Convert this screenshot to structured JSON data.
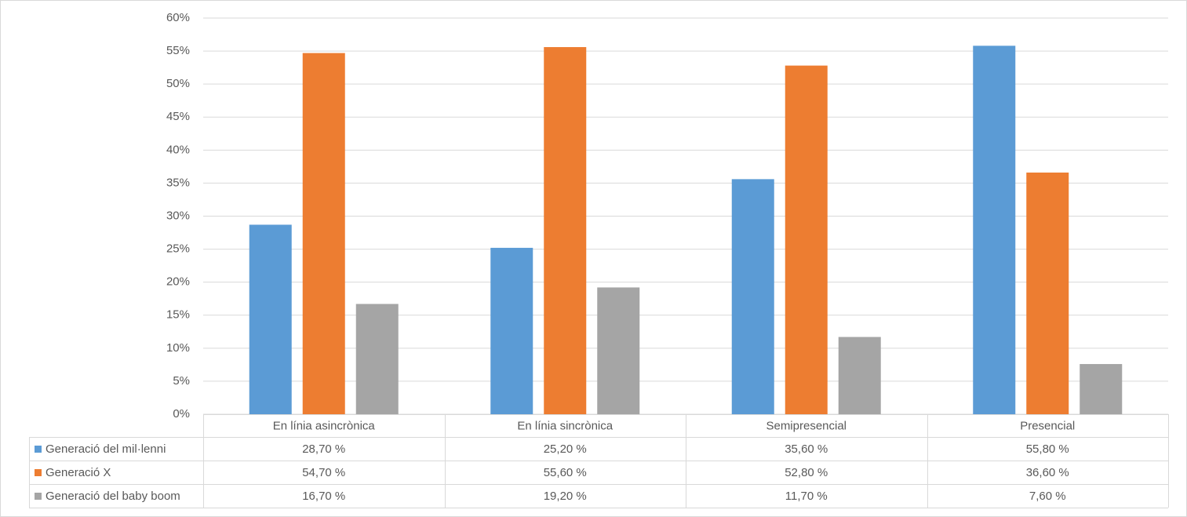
{
  "chart_data": {
    "type": "bar",
    "categories": [
      "En línia asincrònica",
      "En línia sincrònica",
      "Semipresencial",
      "Presencial"
    ],
    "series": [
      {
        "name": "Generació del mil·lenni",
        "color": "#5b9bd5",
        "values": [
          28.7,
          25.2,
          35.6,
          55.8
        ],
        "value_labels": [
          "28,70 %",
          "25,20 %",
          "35,60 %",
          "55,80 %"
        ]
      },
      {
        "name": "Generació X",
        "color": "#ed7d31",
        "values": [
          54.7,
          55.6,
          52.8,
          36.6
        ],
        "value_labels": [
          "54,70 %",
          "55,60 %",
          "52,80 %",
          "36,60 %"
        ]
      },
      {
        "name": "Generació del baby boom",
        "color": "#a5a5a5",
        "values": [
          16.7,
          19.2,
          11.7,
          7.6
        ],
        "value_labels": [
          "16,70 %",
          "19,20 %",
          "11,70 %",
          "7,60 %"
        ]
      }
    ],
    "ylim": [
      0,
      60
    ],
    "yticks": [
      {
        "value": 0,
        "label": "0%"
      },
      {
        "value": 5,
        "label": "5%"
      },
      {
        "value": 10,
        "label": "10%"
      },
      {
        "value": 15,
        "label": "15%"
      },
      {
        "value": 20,
        "label": "20%"
      },
      {
        "value": 25,
        "label": "25%"
      },
      {
        "value": 30,
        "label": "30%"
      },
      {
        "value": 35,
        "label": "35%"
      },
      {
        "value": 40,
        "label": "40%"
      },
      {
        "value": 45,
        "label": "45%"
      },
      {
        "value": 50,
        "label": "50%"
      },
      {
        "value": 55,
        "label": "55%"
      },
      {
        "value": 60,
        "label": "60%"
      }
    ],
    "grid": true
  }
}
